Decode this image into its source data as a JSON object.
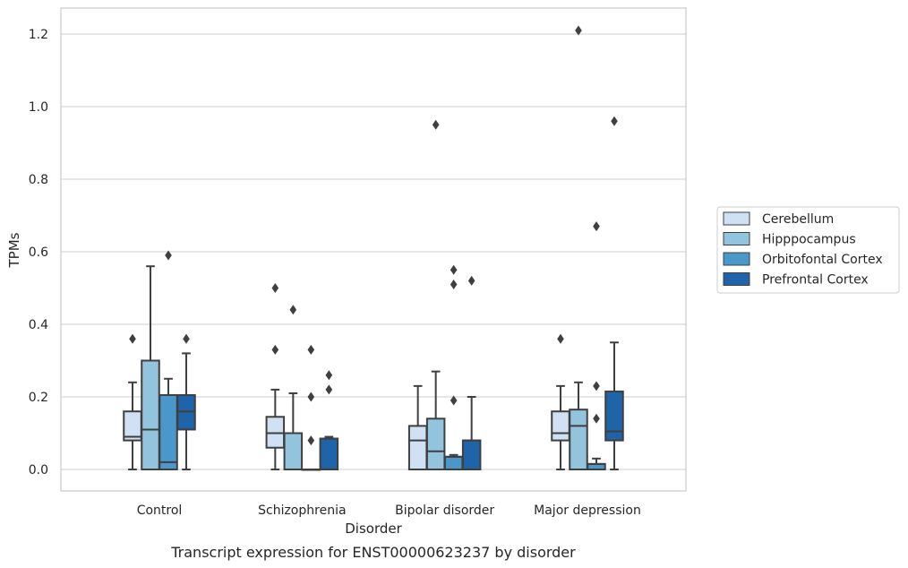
{
  "chart_data": {
    "type": "box",
    "title": "",
    "caption": "Transcript expression for ENST00000623237 by disorder",
    "xlabel": "Disorder",
    "ylabel": "TPMs",
    "ylim": [
      -0.06,
      1.27
    ],
    "yticks": [
      "0.0",
      "0.2",
      "0.4",
      "0.6",
      "0.8",
      "1.0",
      "1.2"
    ],
    "grid": true,
    "legend_position": "right",
    "categories": [
      "Control",
      "Schizophrenia",
      "Bipolar disorder",
      "Major depression"
    ],
    "series": [
      {
        "name": "Cerebellum",
        "color": "#cfe1f2",
        "boxes": [
          {
            "whisker_low": 0.0,
            "q1": 0.08,
            "median": 0.09,
            "q3": 0.16,
            "whisker_high": 0.24,
            "outliers": [
              0.36
            ]
          },
          {
            "whisker_low": 0.0,
            "q1": 0.06,
            "median": 0.1,
            "q3": 0.145,
            "whisker_high": 0.22,
            "outliers": [
              0.33,
              0.5
            ]
          },
          {
            "whisker_low": 0.0,
            "q1": 0.0,
            "median": 0.08,
            "q3": 0.12,
            "whisker_high": 0.23,
            "outliers": []
          },
          {
            "whisker_low": 0.0,
            "q1": 0.08,
            "median": 0.1,
            "q3": 0.16,
            "whisker_high": 0.23,
            "outliers": [
              0.36
            ]
          }
        ]
      },
      {
        "name": "Hipppocampus",
        "color": "#93c4de",
        "boxes": [
          {
            "whisker_low": 0.0,
            "q1": 0.0,
            "median": 0.11,
            "q3": 0.3,
            "whisker_high": 0.56,
            "outliers": []
          },
          {
            "whisker_low": 0.0,
            "q1": 0.0,
            "median": 0.0,
            "q3": 0.1,
            "whisker_high": 0.21,
            "outliers": [
              0.44
            ]
          },
          {
            "whisker_low": 0.0,
            "q1": 0.0,
            "median": 0.05,
            "q3": 0.14,
            "whisker_high": 0.27,
            "outliers": [
              0.95
            ]
          },
          {
            "whisker_low": 0.0,
            "q1": 0.0,
            "median": 0.12,
            "q3": 0.165,
            "whisker_high": 0.24,
            "outliers": [
              1.21
            ]
          }
        ]
      },
      {
        "name": "Orbitofontal Cortex",
        "color": "#4a98c9",
        "boxes": [
          {
            "whisker_low": 0.0,
            "q1": 0.0,
            "median": 0.02,
            "q3": 0.205,
            "whisker_high": 0.25,
            "outliers": [
              0.59
            ]
          },
          {
            "whisker_low": 0.0,
            "q1": 0.0,
            "median": 0.0,
            "q3": 0.0,
            "whisker_high": 0.0,
            "outliers": [
              0.08,
              0.2,
              0.33
            ]
          },
          {
            "whisker_low": 0.0,
            "q1": 0.0,
            "median": 0.035,
            "q3": 0.035,
            "whisker_high": 0.04,
            "outliers": [
              0.19,
              0.51,
              0.55
            ]
          },
          {
            "whisker_low": 0.0,
            "q1": 0.0,
            "median": 0.015,
            "q3": 0.015,
            "whisker_high": 0.03,
            "outliers": [
              0.14,
              0.23,
              0.67
            ]
          }
        ]
      },
      {
        "name": "Prefrontal Cortex",
        "color": "#1f63a8",
        "boxes": [
          {
            "whisker_low": 0.0,
            "q1": 0.11,
            "median": 0.16,
            "q3": 0.205,
            "whisker_high": 0.32,
            "outliers": [
              0.36
            ]
          },
          {
            "whisker_low": 0.0,
            "q1": 0.0,
            "median": 0.085,
            "q3": 0.085,
            "whisker_high": 0.09,
            "outliers": [
              0.22,
              0.26
            ]
          },
          {
            "whisker_low": 0.0,
            "q1": 0.0,
            "median": 0.08,
            "q3": 0.08,
            "whisker_high": 0.2,
            "outliers": [
              0.52
            ]
          },
          {
            "whisker_low": 0.0,
            "q1": 0.08,
            "median": 0.105,
            "q3": 0.215,
            "whisker_high": 0.35,
            "outliers": [
              0.96
            ]
          }
        ]
      }
    ]
  }
}
